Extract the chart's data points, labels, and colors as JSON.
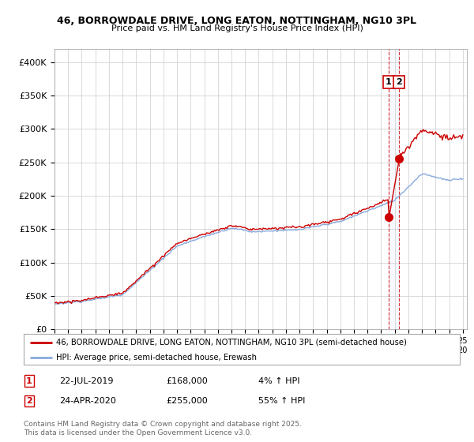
{
  "title_line1": "46, BORROWDALE DRIVE, LONG EATON, NOTTINGHAM, NG10 3PL",
  "title_line2": "Price paid vs. HM Land Registry's House Price Index (HPI)",
  "background_color": "#ffffff",
  "plot_bg_color": "#ffffff",
  "grid_color": "#cccccc",
  "hpi_color": "#88aadd",
  "price_color": "#cc0000",
  "marker_color": "#cc0000",
  "vline_color": "#cc0000",
  "ylim": [
    0,
    420000
  ],
  "yticks": [
    0,
    50000,
    100000,
    150000,
    200000,
    250000,
    300000,
    350000,
    400000
  ],
  "ytick_labels": [
    "£0",
    "£50K",
    "£100K",
    "£150K",
    "£200K",
    "£250K",
    "£300K",
    "£350K",
    "£400K"
  ],
  "legend_entries": [
    "46, BORROWDALE DRIVE, LONG EATON, NOTTINGHAM, NG10 3PL (semi-detached house)",
    "HPI: Average price, semi-detached house, Erewash"
  ],
  "annotation1_date": "22-JUL-2019",
  "annotation1_price": 168000,
  "annotation1_pct": "4% ↑ HPI",
  "annotation2_date": "24-APR-2020",
  "annotation2_price": 255000,
  "annotation2_pct": "55% ↑ HPI",
  "footer": "Contains HM Land Registry data © Crown copyright and database right 2025.\nThis data is licensed under the Open Government Licence v3.0.",
  "sale1_x": 2019.55,
  "sale2_x": 2020.31
}
